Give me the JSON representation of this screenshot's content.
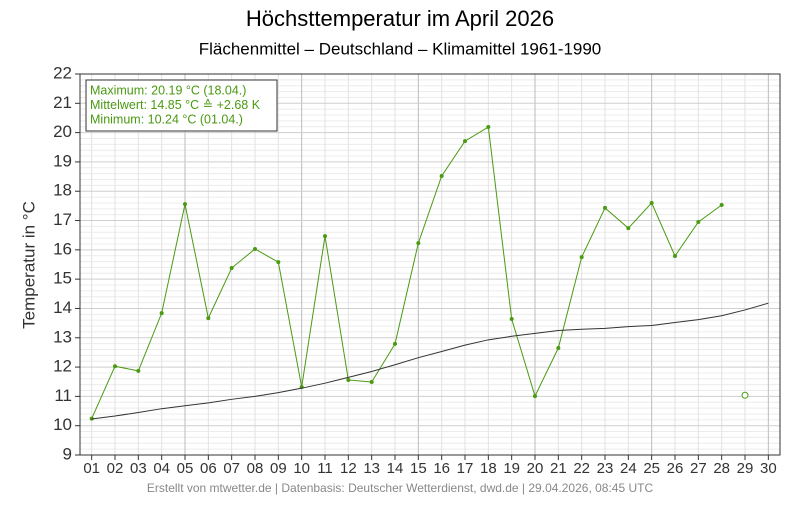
{
  "chart_data": {
    "type": "line",
    "title": "Höchsttemperatur im April 2026",
    "subtitle": "Flächenmittel – Deutschland – Klimamittel 1961-1990",
    "y_label": "Temperatur in °C",
    "info": [
      "Maximum: 20.19 °C (18.04.)",
      "Mittelwert: 14.85 °C ≙ +2.68 K",
      "Minimum:  10.24 °C (01.04.)"
    ],
    "footer": "Erstellt von mtwetter.de | Datenbasis: Deutscher Wetterdienst, dwd.de | 29.04.2026, 08:45 UTC",
    "categories": [
      "01",
      "02",
      "03",
      "04",
      "05",
      "06",
      "07",
      "08",
      "09",
      "10",
      "11",
      "12",
      "13",
      "14",
      "15",
      "16",
      "17",
      "18",
      "19",
      "20",
      "21",
      "22",
      "23",
      "24",
      "25",
      "26",
      "27",
      "28",
      "29",
      "30"
    ],
    "series": [
      {
        "color": "#4a9a12",
        "marker": "dot",
        "values": [
          10.24,
          12.03,
          11.87,
          13.84,
          17.56,
          13.67,
          15.38,
          16.03,
          15.58,
          11.32,
          16.47,
          11.56,
          11.49,
          12.79,
          16.23,
          18.52,
          19.71,
          20.19,
          13.64,
          11.01,
          12.65,
          15.75,
          17.43,
          16.74,
          17.6,
          15.79,
          16.95,
          17.53,
          null,
          null
        ]
      },
      {
        "color": "#4a9a12",
        "marker": "hollow",
        "values": [
          null,
          null,
          null,
          null,
          null,
          null,
          null,
          null,
          null,
          null,
          null,
          null,
          null,
          null,
          null,
          null,
          null,
          null,
          null,
          null,
          null,
          null,
          null,
          null,
          null,
          null,
          null,
          null,
          11.04,
          null
        ]
      },
      {
        "color": "#333333",
        "marker": "none",
        "values": [
          10.23,
          10.33,
          10.45,
          10.58,
          10.68,
          10.78,
          10.9,
          11.0,
          11.13,
          11.28,
          11.45,
          11.65,
          11.85,
          12.08,
          12.32,
          12.53,
          12.75,
          12.93,
          13.05,
          13.15,
          13.25,
          13.29,
          13.32,
          13.38,
          13.42,
          13.52,
          13.62,
          13.75,
          13.95,
          14.18
        ]
      }
    ],
    "ylim": [
      9,
      22
    ],
    "yticks": [
      9,
      10,
      11,
      12,
      13,
      14,
      15,
      16,
      17,
      18,
      19,
      20,
      21,
      22
    ],
    "grid": true
  }
}
